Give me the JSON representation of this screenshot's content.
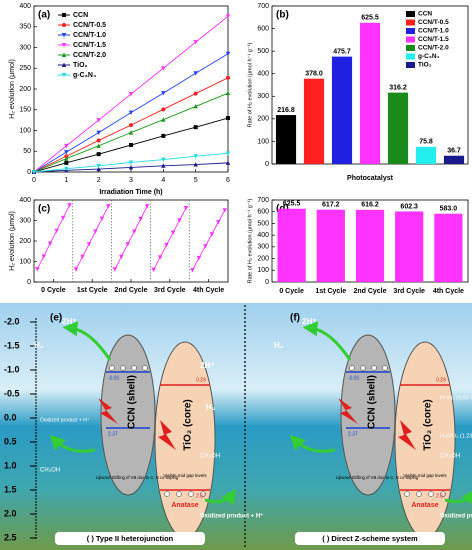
{
  "chart_data": [
    {
      "type": "line",
      "title": "(a)",
      "xlabel": "Irradiation Time (h)",
      "ylabel": "H₂ evolution (μmol)",
      "x": [
        0,
        1,
        2,
        3,
        4,
        5,
        6
      ],
      "xlim": [
        0,
        6
      ],
      "xticks": [
        0,
        1,
        2,
        3,
        4,
        5,
        6
      ],
      "ylim": [
        0,
        400
      ],
      "yticks": [
        0,
        50,
        100,
        150,
        200,
        250,
        300,
        350,
        400
      ],
      "legend": "upper left",
      "series": [
        {
          "name": "CCN",
          "color": "#000000",
          "marker": "square",
          "values": [
            0,
            22,
            43,
            65,
            87,
            108,
            130
          ]
        },
        {
          "name": "CCN/T-0.5",
          "color": "#ff2020",
          "marker": "circle",
          "values": [
            0,
            38,
            76,
            113,
            151,
            189,
            227
          ]
        },
        {
          "name": "CCN/T-1.0",
          "color": "#2040ff",
          "marker": "triangle-down",
          "values": [
            0,
            48,
            95,
            143,
            190,
            238,
            285
          ]
        },
        {
          "name": "CCN/T-1.5",
          "color": "#ff33ff",
          "marker": "triangle-down",
          "values": [
            0,
            63,
            125,
            188,
            250,
            313,
            375
          ]
        },
        {
          "name": "CCN/T-2.0",
          "color": "#1a9a1a",
          "marker": "triangle-up",
          "values": [
            0,
            32,
            63,
            95,
            126,
            158,
            190
          ]
        },
        {
          "name": "TiO₂",
          "color": "#1a1a8c",
          "marker": "triangle-up",
          "values": [
            0,
            4,
            7,
            11,
            15,
            18,
            22
          ]
        },
        {
          "name": "g-C₃N₄",
          "color": "#22dddd",
          "marker": "triangle-down",
          "values": [
            0,
            8,
            15,
            23,
            30,
            38,
            45
          ]
        }
      ]
    },
    {
      "type": "bar",
      "title": "(b)",
      "xlabel": "Photocatalyst",
      "ylabel": "Rate of H₂ evolution (μmol h⁻¹ g⁻¹)",
      "categories": [
        "CCN",
        "CCN/T-0.5",
        "CCN/T-1.0",
        "CCN/T-1.5",
        "CCN/T-2.0",
        "g-C₃N₄",
        "TiO₂"
      ],
      "values": [
        216.8,
        378.0,
        475.7,
        625.5,
        316.2,
        75.8,
        36.7
      ],
      "value_labels": [
        "216.8",
        "378.0",
        "475.7",
        "625.5",
        "316.2",
        "75.8",
        "36.7"
      ],
      "colors": [
        "#000000",
        "#ff2020",
        "#2020e0",
        "#ff33ff",
        "#1a8a1a",
        "#22eeee",
        "#1a1a8c"
      ],
      "ylim": [
        0,
        700
      ],
      "yticks": [
        0,
        100,
        200,
        300,
        400,
        500,
        600,
        700
      ],
      "legend": "upper right"
    },
    {
      "type": "line",
      "title": "(c)",
      "ylabel": "H₂ evolution (μmol)",
      "x": [
        0.5,
        1.5,
        2.5,
        3.5,
        4.5,
        5.5,
        null,
        6.5,
        7.5,
        8.5,
        9.5,
        10.5,
        11.5,
        null,
        12.5,
        13.5,
        14.5,
        15.5,
        16.5,
        17.5,
        null,
        18.5,
        19.5,
        20.5,
        21.5,
        22.5,
        23.5,
        null,
        24.5,
        25.5,
        26.5,
        27.5,
        28.5,
        29.5
      ],
      "xlim": [
        0,
        30
      ],
      "xticks": [
        {
          "value": 3,
          "label": "0 Cycle"
        },
        {
          "value": 9,
          "label": "1st Cycle"
        },
        {
          "value": 15,
          "label": "2nd Cycle"
        },
        {
          "value": 21,
          "label": "3rd Cycle"
        },
        {
          "value": 27,
          "label": "4th Cycle"
        }
      ],
      "ylim": [
        0,
        400
      ],
      "yticks": [
        0,
        100,
        200,
        300,
        400
      ],
      "series": [
        {
          "color": "#ff33ff",
          "marker": "triangle-down",
          "values": [
            63,
            125,
            188,
            250,
            313,
            375,
            null,
            62,
            123,
            185,
            247,
            309,
            370,
            null,
            62,
            123,
            185,
            246,
            308,
            370,
            null,
            60,
            120,
            181,
            241,
            301,
            361,
            null,
            58,
            117,
            175,
            233,
            292,
            350
          ]
        }
      ]
    },
    {
      "type": "bar",
      "title": "(d)",
      "ylabel": "Rate of H₂ evolution (μmol h⁻¹ g⁻¹)",
      "categories": [
        "0 Cycle",
        "1st Cycle",
        "2nd Cycle",
        "3rd Cycle",
        "4th Cycle"
      ],
      "values": [
        625.5,
        617.2,
        616.2,
        602.3,
        583.0
      ],
      "value_labels": [
        "625.5",
        "617.2",
        "616.2",
        "602.3",
        "583.0"
      ],
      "colors": [
        "#ff33ff",
        "#ff33ff",
        "#ff33ff",
        "#ff33ff",
        "#ff33ff"
      ],
      "ylim": [
        0,
        700
      ],
      "yticks": [
        0,
        100,
        200,
        300,
        400,
        500,
        600,
        700
      ]
    }
  ],
  "diagram": {
    "scale": [
      "-2.0",
      "-1.5",
      "-1.0",
      "-0.5",
      "0.0",
      "0.5",
      "1.0",
      "1.5",
      "2.0",
      "2.5"
    ],
    "e": {
      "label": "(e)",
      "caption": "( ) Type II heterojunction",
      "h_plus": "2H⁺",
      "h2": "H₂",
      "h_plus_2": "2H⁺",
      "h2_2": "H₂",
      "cb_ccn": "-0.91",
      "cb_tio2": "0.29",
      "shell": "CCN (shell)",
      "core": "TiO₂ (core)",
      "vb_ccn": "2.37",
      "vb_tio2": "2.87",
      "methanol": "CH₃OH",
      "methanol_2": "CH₃OH",
      "oxidized": "Oxidized product + H⁺",
      "oxidized_2": "Oxidized product + H⁺",
      "upward": "Upward shifting of VB due to C, N co-doping",
      "midgap": "Visible mid gap levels",
      "anatase": "Anatase"
    },
    "f": {
      "label": "(f)",
      "caption": "( ) Direct Z-scheme system",
      "h_plus": "2H⁺",
      "h2": "H₂",
      "cb_ccn": "-0.91",
      "cb_tio2": "0.29",
      "shell": "CCN (shell)",
      "core": "TiO₂ (core)",
      "vb_ccn": "2.37",
      "vb_tio2": "2.87",
      "h_level": "H⁺/H₂ (0.00 V)",
      "o_level": "H₂O/O₂ (1.23 V)",
      "methanol": "CH₃OH",
      "oxidized": "Oxidized product + H⁺",
      "upward": "Upward shifting of VB due to C, N co-doping",
      "midgap": "Visible mid gap levels",
      "anatase": "Anatase"
    }
  }
}
